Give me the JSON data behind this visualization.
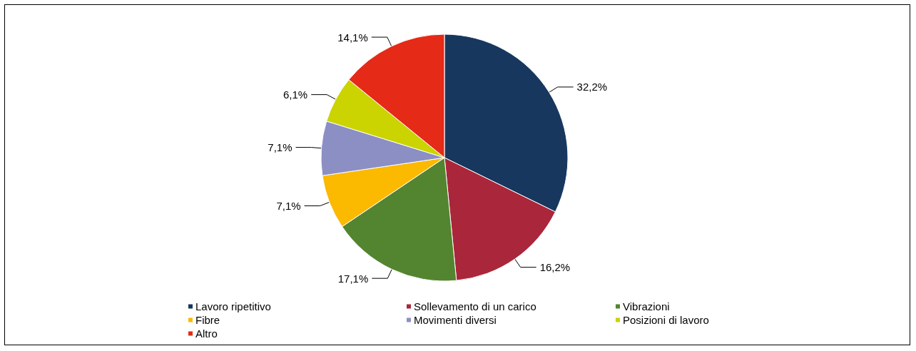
{
  "chart_data": {
    "type": "pie",
    "categories": [
      "Lavoro ripetitivo",
      "Sollevamento di un carico",
      "Vibrazioni",
      "Fibre",
      "Movimenti diversi",
      "Posizioni di lavoro",
      "Altro"
    ],
    "values": [
      32.2,
      16.2,
      17.1,
      7.1,
      7.1,
      6.1,
      14.1
    ],
    "value_labels": [
      "32,2%",
      "16,2%",
      "17,1%",
      "7,1%",
      "7,1%",
      "6,1%",
      "14,1%"
    ],
    "colors": [
      "#17375e",
      "#aa263a",
      "#538530",
      "#fbb900",
      "#8b8fc4",
      "#cbd300",
      "#e52a17"
    ],
    "legend": "bottom"
  }
}
